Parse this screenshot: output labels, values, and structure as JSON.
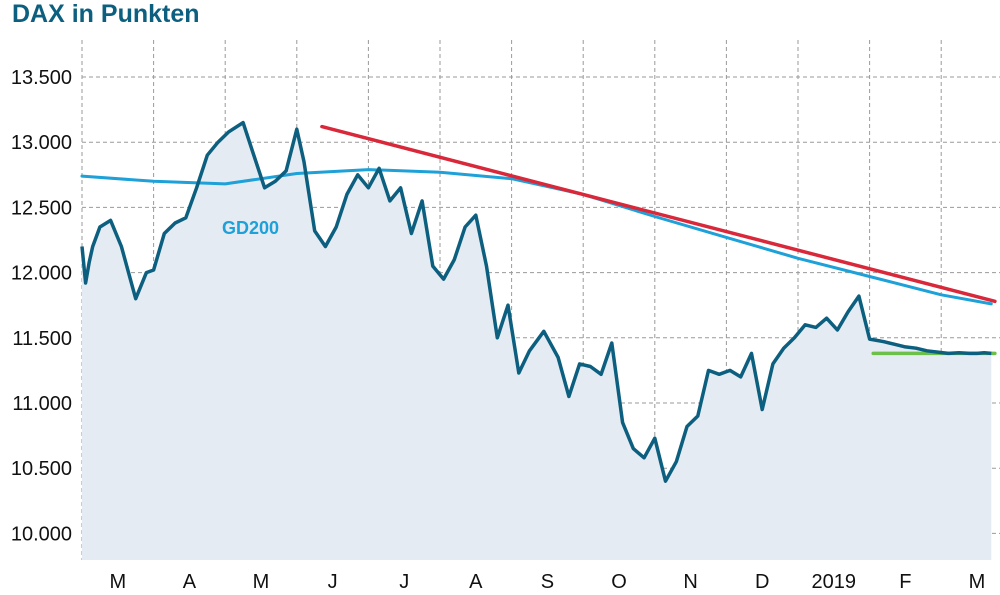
{
  "chart_data": {
    "type": "line",
    "title": "DAX in Punkten",
    "xlabel": "",
    "ylabel": "",
    "ylim": [
      9850,
      13700
    ],
    "y_ticks": [
      {
        "value": 10000,
        "label": "10.000"
      },
      {
        "value": 10500,
        "label": "10.500"
      },
      {
        "value": 11000,
        "label": "11.000"
      },
      {
        "value": 11500,
        "label": "11.500"
      },
      {
        "value": 12000,
        "label": "12.000"
      },
      {
        "value": 12500,
        "label": "12.500"
      },
      {
        "value": 13000,
        "label": "13.000"
      },
      {
        "value": 13500,
        "label": "13.500"
      }
    ],
    "x_ticks": [
      "M",
      "A",
      "M",
      "J",
      "J",
      "A",
      "S",
      "O",
      "N",
      "D",
      "2019",
      "F",
      "M"
    ],
    "grid": true,
    "series": [
      {
        "color": "#0d5f7f",
        "x": [
          0,
          0.05,
          0.1,
          0.15,
          0.25,
          0.4,
          0.55,
          0.75,
          0.9,
          1.0,
          1.15,
          1.3,
          1.45,
          1.6,
          1.75,
          1.9,
          2.05,
          2.25,
          2.4,
          2.55,
          2.7,
          2.85,
          3.0,
          3.1,
          3.25,
          3.4,
          3.55,
          3.7,
          3.85,
          4.0,
          4.15,
          4.3,
          4.45,
          4.6,
          4.75,
          4.9,
          5.05,
          5.2,
          5.35,
          5.5,
          5.65,
          5.8,
          5.95,
          6.1,
          6.25,
          6.45,
          6.65,
          6.8,
          6.95,
          7.1,
          7.25,
          7.4,
          7.55,
          7.7,
          7.85,
          8.0,
          8.15,
          8.3,
          8.45,
          8.6,
          8.75,
          8.9,
          9.05,
          9.2,
          9.35,
          9.5,
          9.65,
          9.8,
          9.95,
          10.1,
          10.25,
          10.4,
          10.55,
          10.7,
          10.85,
          11.0,
          11.1,
          11.2,
          11.35,
          11.5,
          11.65,
          11.8,
          11.95,
          12.1,
          12.25,
          12.4,
          12.5,
          12.6,
          12.7
        ],
        "values": [
          12200,
          11920,
          12080,
          12200,
          12350,
          12400,
          12200,
          11800,
          12000,
          12020,
          12300,
          12380,
          12420,
          12650,
          12900,
          13000,
          13080,
          13150,
          12900,
          12650,
          12700,
          12780,
          13100,
          12850,
          12320,
          12200,
          12350,
          12600,
          12750,
          12650,
          12800,
          12550,
          12650,
          12300,
          12550,
          12050,
          11950,
          12100,
          12350,
          12440,
          12050,
          11500,
          11750,
          11230,
          11400,
          11550,
          11350,
          11050,
          11300,
          11280,
          11220,
          11460,
          10850,
          10650,
          10580,
          10730,
          10400,
          10550,
          10820,
          10900,
          11250,
          11220,
          11250,
          11200,
          11380,
          10950,
          11300,
          11420,
          11500,
          11600,
          11580,
          11650,
          11560,
          11700,
          11820,
          11490,
          11480,
          11470,
          11450,
          11430,
          11420,
          11400,
          11390,
          11380,
          11385,
          11380,
          11380,
          11385,
          11380
        ]
      },
      {
        "name": "GD200",
        "color": "#1ea0d8",
        "x": [
          0,
          1,
          2,
          3,
          4,
          5,
          6,
          7,
          8,
          9,
          10,
          11,
          12,
          12.7
        ],
        "values": [
          12740,
          12700,
          12680,
          12760,
          12790,
          12770,
          12720,
          12600,
          12430,
          12270,
          12110,
          11970,
          11830,
          11760
        ]
      },
      {
        "color": "#d8283a",
        "x": [
          3.35,
          12.75
        ],
        "values": [
          13120,
          11780
        ]
      },
      {
        "color": "#6cc04a",
        "x": [
          11.05,
          12.75
        ],
        "values": [
          11380,
          11380
        ]
      }
    ]
  }
}
